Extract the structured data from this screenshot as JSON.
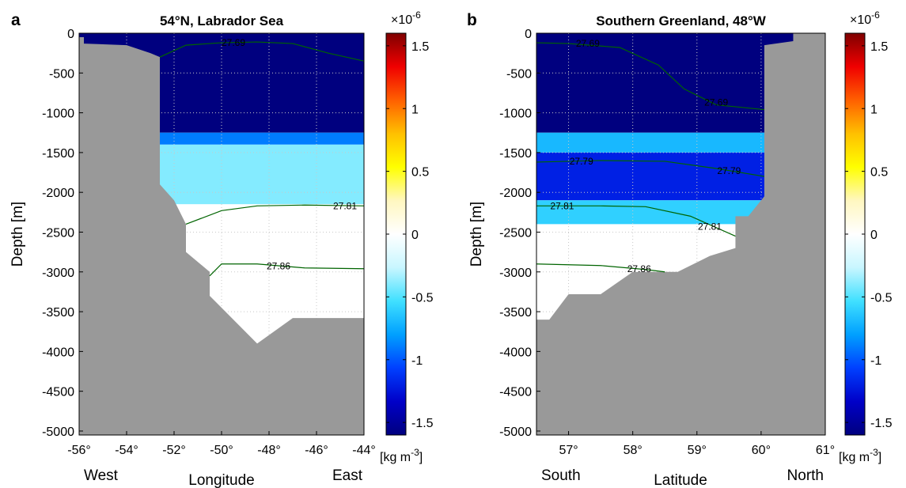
{
  "colorbar_stops": [
    "#00007f",
    "#0000c8",
    "#0040ff",
    "#00a0ff",
    "#40e0ff",
    "#c8f6ff",
    "#ffffff",
    "#fff7c0",
    "#ffff00",
    "#ffc000",
    "#ff6000",
    "#f00000",
    "#7f0000"
  ],
  "colors": {
    "topography": "#999999",
    "deep_blue": "#00008b",
    "contour": "#006400"
  },
  "chart_data": [
    {
      "panel": "a",
      "type": "heatmap",
      "title": "54°N, Labrador Sea",
      "xlabel": "Longitude",
      "ylabel": "Depth [m]",
      "x_side_labels": {
        "left": "West",
        "right": "East"
      },
      "xlim": [
        -56,
        -44
      ],
      "ylim": [
        -5050,
        0
      ],
      "xticks": [
        -56,
        -54,
        -52,
        -50,
        -48,
        -46,
        -44
      ],
      "xtick_labels": [
        "-56°",
        "-54°",
        "-52°",
        "-50°",
        "-48°",
        "-46°",
        "-44°"
      ],
      "yticks": [
        0,
        -500,
        -1000,
        -1500,
        -2000,
        -2500,
        -3000,
        -3500,
        -4000,
        -4500,
        -5000
      ],
      "colorbar": {
        "range": [
          -1.6,
          1.6
        ],
        "ticks": [
          1.5,
          1,
          0.5,
          0,
          -0.5,
          -1,
          -1.5
        ],
        "exponent_label": "×10",
        "exponent": "-6",
        "unit_label": "[kg m",
        "unit_exp": "-3",
        "unit_close": "]"
      },
      "bands": [
        {
          "depth_top": 0,
          "depth_bottom": -1250,
          "value": -1.6
        },
        {
          "depth_top": -1250,
          "depth_bottom": -1400,
          "value": -0.9
        },
        {
          "depth_top": -1400,
          "depth_bottom": -2150,
          "value": -0.4
        },
        {
          "depth_top": -2150,
          "depth_bottom": -5050,
          "value": 0.0
        }
      ],
      "topography": [
        [
          -56,
          -50
        ],
        [
          -55.8,
          -50
        ],
        [
          -55.8,
          -130
        ],
        [
          -54,
          -150
        ],
        [
          -53,
          -250
        ],
        [
          -52.6,
          -300
        ],
        [
          -52.6,
          -1900
        ],
        [
          -52,
          -2100
        ],
        [
          -51.5,
          -2400
        ],
        [
          -51.5,
          -2750
        ],
        [
          -50.5,
          -3000
        ],
        [
          -50.5,
          -3300
        ],
        [
          -48.5,
          -3900
        ],
        [
          -47,
          -3580
        ],
        [
          -44,
          -3580
        ]
      ],
      "contours": [
        {
          "label": "27.69",
          "label_at": [
            -49.5,
            -120
          ],
          "points": [
            [
              -52.6,
              -300
            ],
            [
              -51.5,
              -150
            ],
            [
              -50,
              -120
            ],
            [
              -48.5,
              -110
            ],
            [
              -47,
              -130
            ],
            [
              -45.5,
              -250
            ],
            [
              -44,
              -350
            ]
          ]
        },
        {
          "label": "27.81",
          "label_at": [
            -44.8,
            -2170
          ],
          "points": [
            [
              -51.5,
              -2400
            ],
            [
              -50,
              -2230
            ],
            [
              -48.5,
              -2170
            ],
            [
              -46.5,
              -2160
            ],
            [
              -44,
              -2170
            ]
          ]
        },
        {
          "label": "27.86",
          "label_at": [
            -47.6,
            -2930
          ],
          "points": [
            [
              -50.5,
              -3050
            ],
            [
              -50,
              -2900
            ],
            [
              -48.5,
              -2900
            ],
            [
              -46.5,
              -2950
            ],
            [
              -44,
              -2960
            ]
          ]
        }
      ]
    },
    {
      "panel": "b",
      "type": "heatmap",
      "title": "Southern Greenland, 48°W",
      "xlabel": "Latitude",
      "ylabel": "Depth [m]",
      "x_side_labels": {
        "left": "South",
        "right": "North"
      },
      "xlim": [
        56.5,
        61
      ],
      "ylim": [
        -5050,
        0
      ],
      "xticks": [
        57,
        58,
        59,
        60,
        61
      ],
      "xtick_labels": [
        "57°",
        "58°",
        "59°",
        "60°",
        "61°"
      ],
      "yticks": [
        0,
        -500,
        -1000,
        -1500,
        -2000,
        -2500,
        -3000,
        -3500,
        -4000,
        -4500,
        -5000
      ],
      "colorbar": {
        "range": [
          -1.6,
          1.6
        ],
        "ticks": [
          1.5,
          1,
          0.5,
          0,
          -0.5,
          -1,
          -1.5
        ],
        "exponent_label": "×10",
        "exponent": "-6",
        "unit_label": "[kg m",
        "unit_exp": "-3",
        "unit_close": "]"
      },
      "bands": [
        {
          "depth_top": 0,
          "depth_bottom": -1250,
          "value": -1.6
        },
        {
          "depth_top": -1250,
          "depth_bottom": -1500,
          "value": -0.7
        },
        {
          "depth_top": -1500,
          "depth_bottom": -2100,
          "value": -1.2
        },
        {
          "depth_top": -2100,
          "depth_bottom": -2400,
          "value": -0.6
        },
        {
          "depth_top": -2400,
          "depth_bottom": -5050,
          "value": 0.0
        }
      ],
      "topography": [
        [
          56.5,
          -3600
        ],
        [
          56.7,
          -3600
        ],
        [
          57,
          -3280
        ],
        [
          57.5,
          -3280
        ],
        [
          58,
          -3000
        ],
        [
          58.7,
          -3000
        ],
        [
          59.2,
          -2800
        ],
        [
          59.6,
          -2700
        ],
        [
          59.6,
          -2300
        ],
        [
          59.8,
          -2300
        ],
        [
          60.05,
          -2050
        ],
        [
          60.05,
          -150
        ],
        [
          60.5,
          -100
        ],
        [
          60.5,
          0
        ],
        [
          61,
          0
        ]
      ],
      "contours": [
        {
          "label": "27.69",
          "label_at": [
            57.3,
            -130
          ],
          "points": [
            [
              56.5,
              -120
            ],
            [
              57,
              -130
            ],
            [
              57.8,
              -180
            ],
            [
              58.4,
              -400
            ],
            [
              58.8,
              -700
            ],
            [
              59.3,
              -900
            ],
            [
              60.05,
              -960
            ]
          ]
        },
        {
          "label": "27.69",
          "label_at": [
            59.3,
            -870
          ],
          "points": []
        },
        {
          "label": "27.79",
          "label_at": [
            57.2,
            -1610
          ],
          "points": [
            [
              56.5,
              -1620
            ],
            [
              57.5,
              -1600
            ],
            [
              58.5,
              -1610
            ],
            [
              59.3,
              -1700
            ],
            [
              60.05,
              -1800
            ]
          ]
        },
        {
          "label": "27.79",
          "label_at": [
            59.5,
            -1730
          ],
          "points": []
        },
        {
          "label": "27.81",
          "label_at": [
            56.9,
            -2170
          ],
          "points": [
            [
              56.5,
              -2170
            ],
            [
              57.5,
              -2170
            ],
            [
              58.2,
              -2180
            ],
            [
              58.9,
              -2300
            ],
            [
              59.6,
              -2550
            ]
          ]
        },
        {
          "label": "27.81",
          "label_at": [
            59.2,
            -2430
          ],
          "points": []
        },
        {
          "label": "27.86",
          "label_at": [
            58.1,
            -2960
          ],
          "points": [
            [
              56.5,
              -2900
            ],
            [
              57.5,
              -2920
            ],
            [
              58.2,
              -2970
            ],
            [
              58.5,
              -3000
            ]
          ]
        }
      ]
    }
  ]
}
